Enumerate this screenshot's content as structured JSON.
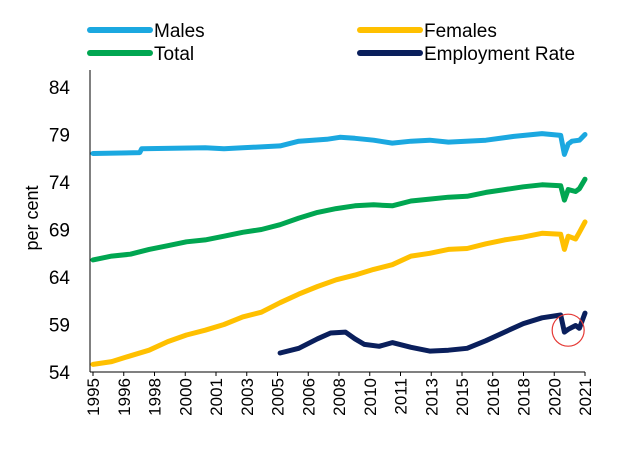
{
  "chart_data": {
    "type": "line",
    "title": "",
    "xlabel": "",
    "ylabel": "per cent",
    "ylim": [
      54,
      86
    ],
    "xlim": [
      1995,
      2021.3
    ],
    "yticks": [
      54,
      59,
      64,
      69,
      74,
      79,
      84
    ],
    "ytick_labels": [
      "54",
      "59",
      "64",
      "69",
      "74",
      "79",
      "84"
    ],
    "xtick_labels": [
      "1995",
      "1996",
      "1998",
      "2000",
      "2001",
      "2003",
      "2005",
      "2006",
      "2008",
      "2010",
      "2011",
      "2013",
      "2015",
      "2016",
      "2018",
      "2020",
      "2021"
    ],
    "legend": [
      "Males",
      "Females",
      "Total",
      "Employment Rate"
    ],
    "annotation": "red circle marking the 2020 dip",
    "annotation_at": [
      2020.4,
      58.4
    ],
    "series": [
      {
        "name": "Males",
        "color": "#1BA8E0",
        "points": [
          [
            1995,
            77.0
          ],
          [
            1997.5,
            77.1
          ],
          [
            1997.6,
            77.5
          ],
          [
            2001,
            77.6
          ],
          [
            2002,
            77.5
          ],
          [
            2003,
            77.6
          ],
          [
            2005,
            77.8
          ],
          [
            2006,
            78.3
          ],
          [
            2007.5,
            78.5
          ],
          [
            2008.2,
            78.7
          ],
          [
            2009,
            78.6
          ],
          [
            2010,
            78.4
          ],
          [
            2011,
            78.1
          ],
          [
            2012,
            78.3
          ],
          [
            2013,
            78.4
          ],
          [
            2014,
            78.2
          ],
          [
            2016,
            78.4
          ],
          [
            2017.5,
            78.8
          ],
          [
            2019,
            79.1
          ],
          [
            2020.0,
            78.9
          ],
          [
            2020.2,
            76.9
          ],
          [
            2020.4,
            78.0
          ],
          [
            2020.6,
            78.3
          ],
          [
            2021.0,
            78.4
          ],
          [
            2021.3,
            79.0
          ]
        ]
      },
      {
        "name": "Females",
        "color": "#FFC000",
        "points": [
          [
            1995,
            54.8
          ],
          [
            1996,
            55.1
          ],
          [
            1997,
            55.7
          ],
          [
            1998,
            56.3
          ],
          [
            1999,
            57.2
          ],
          [
            2000,
            57.9
          ],
          [
            2001,
            58.4
          ],
          [
            2002,
            59.0
          ],
          [
            2003,
            59.8
          ],
          [
            2004,
            60.3
          ],
          [
            2005,
            61.3
          ],
          [
            2006,
            62.2
          ],
          [
            2007,
            63.0
          ],
          [
            2008,
            63.7
          ],
          [
            2009,
            64.2
          ],
          [
            2010,
            64.8
          ],
          [
            2011,
            65.3
          ],
          [
            2012,
            66.2
          ],
          [
            2013,
            66.5
          ],
          [
            2014,
            66.9
          ],
          [
            2015,
            67.0
          ],
          [
            2016,
            67.5
          ],
          [
            2017,
            67.9
          ],
          [
            2018,
            68.2
          ],
          [
            2019,
            68.6
          ],
          [
            2020.0,
            68.5
          ],
          [
            2020.2,
            66.9
          ],
          [
            2020.4,
            68.3
          ],
          [
            2020.8,
            68.0
          ],
          [
            2021.0,
            68.7
          ],
          [
            2021.3,
            69.8
          ]
        ]
      },
      {
        "name": "Total",
        "color": "#00A651",
        "points": [
          [
            1995,
            65.8
          ],
          [
            1996,
            66.2
          ],
          [
            1997,
            66.4
          ],
          [
            1998,
            66.9
          ],
          [
            1999,
            67.3
          ],
          [
            2000,
            67.7
          ],
          [
            2001,
            67.9
          ],
          [
            2002,
            68.3
          ],
          [
            2003,
            68.7
          ],
          [
            2004,
            69.0
          ],
          [
            2005,
            69.5
          ],
          [
            2006,
            70.2
          ],
          [
            2007,
            70.8
          ],
          [
            2008,
            71.2
          ],
          [
            2009,
            71.5
          ],
          [
            2010,
            71.6
          ],
          [
            2011,
            71.5
          ],
          [
            2012,
            72.0
          ],
          [
            2013,
            72.2
          ],
          [
            2014,
            72.4
          ],
          [
            2015,
            72.5
          ],
          [
            2016,
            72.9
          ],
          [
            2017,
            73.2
          ],
          [
            2018,
            73.5
          ],
          [
            2019,
            73.7
          ],
          [
            2020.0,
            73.6
          ],
          [
            2020.2,
            72.1
          ],
          [
            2020.4,
            73.2
          ],
          [
            2020.8,
            73.0
          ],
          [
            2021.0,
            73.3
          ],
          [
            2021.3,
            74.3
          ]
        ]
      },
      {
        "name": "Employment Rate",
        "color": "#0A1F5C",
        "points": [
          [
            2005,
            56.0
          ],
          [
            2006,
            56.5
          ],
          [
            2007,
            57.5
          ],
          [
            2007.7,
            58.1
          ],
          [
            2008.5,
            58.2
          ],
          [
            2009.0,
            57.5
          ],
          [
            2009.5,
            56.9
          ],
          [
            2010.3,
            56.7
          ],
          [
            2011,
            57.1
          ],
          [
            2012,
            56.6
          ],
          [
            2013,
            56.2
          ],
          [
            2014,
            56.3
          ],
          [
            2015,
            56.5
          ],
          [
            2016,
            57.3
          ],
          [
            2017,
            58.2
          ],
          [
            2018,
            59.1
          ],
          [
            2019,
            59.7
          ],
          [
            2020.0,
            60.0
          ],
          [
            2020.2,
            58.2
          ],
          [
            2020.4,
            58.5
          ],
          [
            2020.8,
            58.9
          ],
          [
            2021.0,
            58.6
          ],
          [
            2021.3,
            60.2
          ]
        ]
      }
    ]
  }
}
